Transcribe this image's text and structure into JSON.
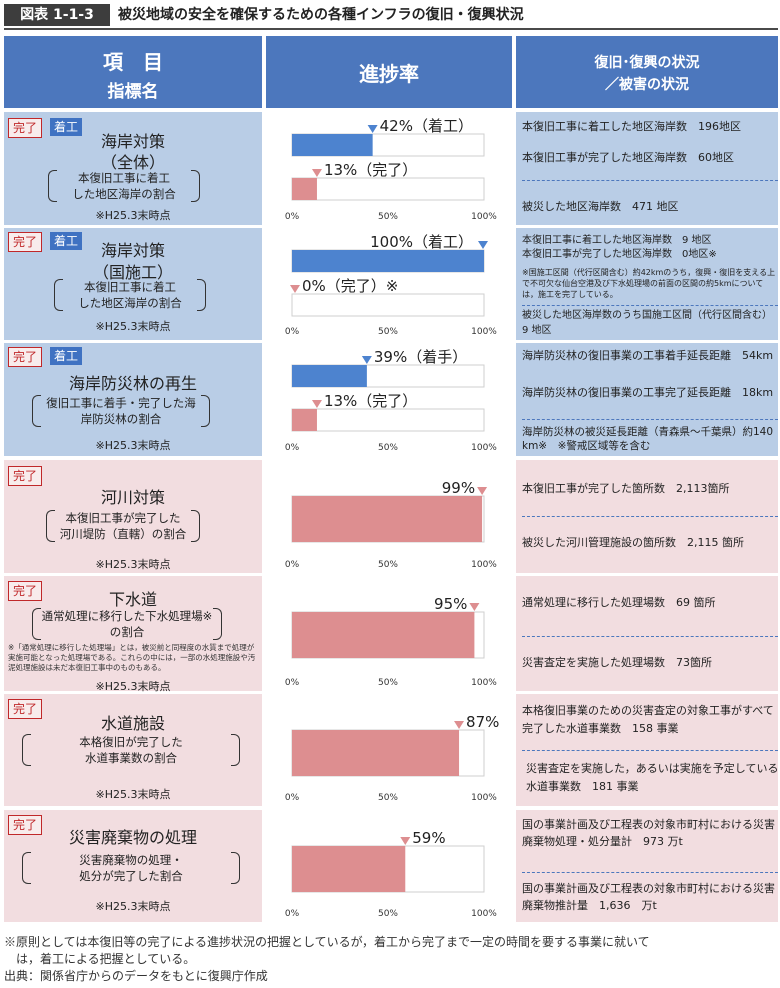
{
  "figure": {
    "number": "図表 1-1-3",
    "title": "被災地域の安全を確保するための各種インフラの復旧・復興状況"
  },
  "header": {
    "item_l1": "項　目",
    "item_l2": "指標名",
    "progress": "進捗率",
    "status_l1": "復旧･復興の状況",
    "status_l2": "／被害の状況"
  },
  "colors": {
    "header": "#4c77bd",
    "blue_row": "#b9cde6",
    "pink_row": "#f2dde0",
    "blue_bar": "#4d83cf",
    "pink_bar": "#dd8e90"
  },
  "rows": [
    {
      "tag_done": "完了",
      "tag_start": "着工",
      "name_l1": "海岸対策",
      "name_l2": "（全体）",
      "indicator_l1": "本復旧工事に着工",
      "indicator_l2": "した地区海岸の割合",
      "note": "※H25.3末時点",
      "footnote": "",
      "status": [
        {
          "text": "本復旧工事に着工した地区海岸数　196地区"
        },
        {
          "text": "本復旧工事が完了した地区海岸数　60地区"
        },
        {
          "text": "被災した地区海岸数　471 地区"
        }
      ]
    },
    {
      "tag_done": "完了",
      "tag_start": "着工",
      "name_l1": "海岸対策",
      "name_l2": "（国施工）",
      "indicator_l1": "本復旧工事に着工",
      "indicator_l2": "した地区海岸の割合",
      "note": "※H25.3末時点",
      "footnote": "",
      "status": [
        {
          "text": "本復旧工事に着工した地区海岸数　9 地区"
        },
        {
          "text": "本復旧工事が完了した地区海岸数　0地区※"
        },
        {
          "text": "※国施工区間（代行区間含む）約42kmのうち，復興・復旧を支える上で不可欠な仙台空港及び下水処理場の前面の区間の約5kmについては，施工を完了している。"
        },
        {
          "text": "被災した地区海岸数のうち国施工区間（代行区間含む）　9 地区"
        }
      ]
    },
    {
      "tag_done": "完了",
      "tag_start": "着工",
      "name_l1": "海岸防災林の再生",
      "name_l2": "",
      "indicator_l1": "復旧工事に着手・完了した海",
      "indicator_l2": "岸防災林の割合",
      "note": "※H25.3末時点",
      "footnote": "",
      "status": [
        {
          "text": "海岸防災林の復旧事業の工事着手延長距離　54km"
        },
        {
          "text": "海岸防災林の復旧事業の工事完了延長距離　18km"
        },
        {
          "text": "海岸防災林の被災延長距離（青森県～千葉県）約140 km※　※警戒区域等を含む"
        }
      ]
    },
    {
      "tag_done": "完了",
      "tag_start": "",
      "name_l1": "河川対策",
      "name_l2": "",
      "indicator_l1": "本復旧工事が完了した",
      "indicator_l2": "河川堤防（直轄）の割合",
      "note": "※H25.3末時点",
      "footnote": "",
      "status": [
        {
          "text": "本復旧工事が完了した箇所数　2,113箇所"
        },
        {
          "text": "被災した河川管理施設の箇所数　2,115 箇所"
        }
      ]
    },
    {
      "tag_done": "完了",
      "tag_start": "",
      "name_l1": "下水道",
      "name_l2": "",
      "indicator_l1": "通常処理に移行した下水処理場※",
      "indicator_l2": "の割合",
      "note": "※H25.3末時点",
      "footnote": "※「通常処理に移行した処理場」とは，被災前と同程度の水質まで処理が実施可能となった処理場である。これらの中には，一部の水処理施設や汚泥処理施設は未だ本復旧工事中のものもある。",
      "status": [
        {
          "text": "通常処理に移行した処理場数　69 箇所"
        },
        {
          "text": "災害査定を実施した処理場数　73箇所"
        }
      ]
    },
    {
      "tag_done": "完了",
      "tag_start": "",
      "name_l1": "水道施設",
      "name_l2": "",
      "indicator_l1": "本格復旧が完了した",
      "indicator_l2": "水道事業数の割合",
      "note": "※H25.3末時点",
      "footnote": "",
      "status": [
        {
          "text": "本格復旧事業のための災害査定の対象工事がすべて完了した水道事業数　158 事業"
        },
        {
          "text": "災害査定を実施した，あるいは実施を予定している水道事業数　181 事業"
        }
      ]
    },
    {
      "tag_done": "完了",
      "tag_start": "",
      "name_l1": "災害廃棄物の処理",
      "name_l2": "",
      "indicator_l1": "災害廃棄物の処理・",
      "indicator_l2": "処分が完了した割合",
      "note": "※H25.3末時点",
      "footnote": "",
      "status": [
        {
          "text": "国の事業計画及び工程表の対象市町村における災害廃棄物処理・処分量計　973 万t"
        },
        {
          "text": "国の事業計画及び工程表の対象市町村における災害廃棄物推計量　1,636　万t"
        }
      ]
    }
  ],
  "chart_data": [
    {
      "type": "bar",
      "orientation": "horizontal",
      "title": "海岸対策（全体）",
      "xlim": [
        0,
        100
      ],
      "ticks": [
        "0%",
        "50%",
        "100%"
      ],
      "series": [
        {
          "name": "着工",
          "value": 42,
          "label": "42%（着工）",
          "color": "#4d83cf"
        },
        {
          "name": "完了",
          "value": 13,
          "label": "13%（完了）",
          "color": "#dd8e90"
        }
      ]
    },
    {
      "type": "bar",
      "orientation": "horizontal",
      "title": "海岸対策（国施工）",
      "xlim": [
        0,
        100
      ],
      "ticks": [
        "0%",
        "50%",
        "100%"
      ],
      "series": [
        {
          "name": "着工",
          "value": 100,
          "label": "100%（着工）",
          "color": "#4d83cf"
        },
        {
          "name": "完了",
          "value": 0,
          "label": "0%（完了）※",
          "color": "#dd8e90"
        }
      ]
    },
    {
      "type": "bar",
      "orientation": "horizontal",
      "title": "海岸防災林の再生",
      "xlim": [
        0,
        100
      ],
      "ticks": [
        "0%",
        "50%",
        "100%"
      ],
      "series": [
        {
          "name": "着手",
          "value": 39,
          "label": "39%（着手）",
          "color": "#4d83cf"
        },
        {
          "name": "完了",
          "value": 13,
          "label": "13%（完了）",
          "color": "#dd8e90"
        }
      ]
    },
    {
      "type": "bar",
      "orientation": "horizontal",
      "title": "河川対策",
      "xlim": [
        0,
        100
      ],
      "ticks": [
        "0%",
        "50%",
        "100%"
      ],
      "series": [
        {
          "name": "完了",
          "value": 99,
          "label": "99%",
          "color": "#dd8e90"
        }
      ]
    },
    {
      "type": "bar",
      "orientation": "horizontal",
      "title": "下水道",
      "xlim": [
        0,
        100
      ],
      "ticks": [
        "0%",
        "50%",
        "100%"
      ],
      "series": [
        {
          "name": "完了",
          "value": 95,
          "label": "95%",
          "color": "#dd8e90"
        }
      ]
    },
    {
      "type": "bar",
      "orientation": "horizontal",
      "title": "水道施設",
      "xlim": [
        0,
        100
      ],
      "ticks": [
        "0%",
        "50%",
        "100%"
      ],
      "series": [
        {
          "name": "完了",
          "value": 87,
          "label": "87%",
          "color": "#dd8e90"
        }
      ]
    },
    {
      "type": "bar",
      "orientation": "horizontal",
      "title": "災害廃棄物の処理",
      "xlim": [
        0,
        100
      ],
      "ticks": [
        "0%",
        "50%",
        "100%"
      ],
      "series": [
        {
          "name": "完了",
          "value": 59,
          "label": "59%",
          "color": "#dd8e90"
        }
      ]
    }
  ],
  "footer": {
    "note_l1": "※原則としては本復旧等の完了による進捗状況の把握としているが，着工から完了まで一定の時間を要する事業に就いて",
    "note_l2": "　は，着工による把握としている。",
    "source": "出典：関係省庁からのデータをもとに復興庁作成"
  }
}
